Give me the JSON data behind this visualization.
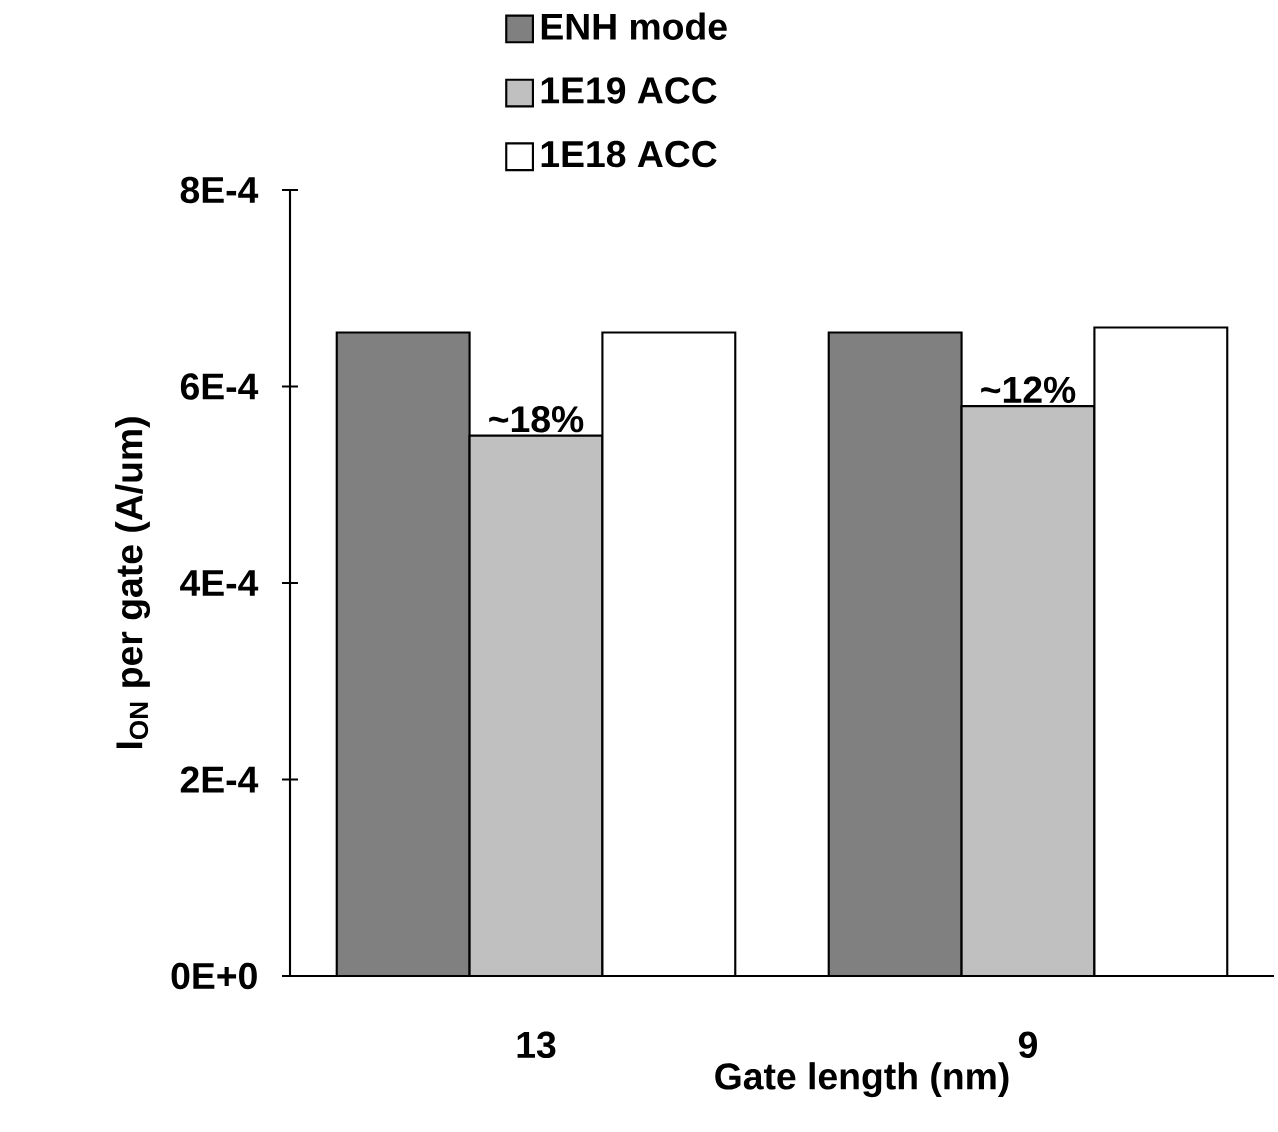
{
  "chart_data": {
    "type": "bar",
    "xlabel": "Gate length (nm)",
    "ylabel": "I$_{ON}$ per gate (A/um)",
    "categories": [
      "13",
      "9"
    ],
    "series": [
      {
        "name": "ENH mode",
        "color": "#808080",
        "values": [
          0.000655,
          0.000655
        ]
      },
      {
        "name": "1E19 ACC",
        "color": "#c0c0c0",
        "values": [
          0.00055,
          0.00058
        ]
      },
      {
        "name": "1E18 ACC",
        "color": "#ffffff",
        "values": [
          0.000655,
          0.00066
        ]
      }
    ],
    "ylim": [
      0,
      0.0008
    ],
    "yticks": [
      {
        "value": 0,
        "label": "0E+0"
      },
      {
        "value": 0.0002,
        "label": "2E-4"
      },
      {
        "value": 0.0004,
        "label": "4E-4"
      },
      {
        "value": 0.0006,
        "label": "6E-4"
      },
      {
        "value": 0.0008,
        "label": "8E-4"
      }
    ],
    "annotations": [
      {
        "text": "~18%",
        "x": "13",
        "y": 0.00055
      },
      {
        "text": "~12%",
        "x": "9",
        "y": 0.00058
      }
    ],
    "legend": "top",
    "grid": false
  }
}
